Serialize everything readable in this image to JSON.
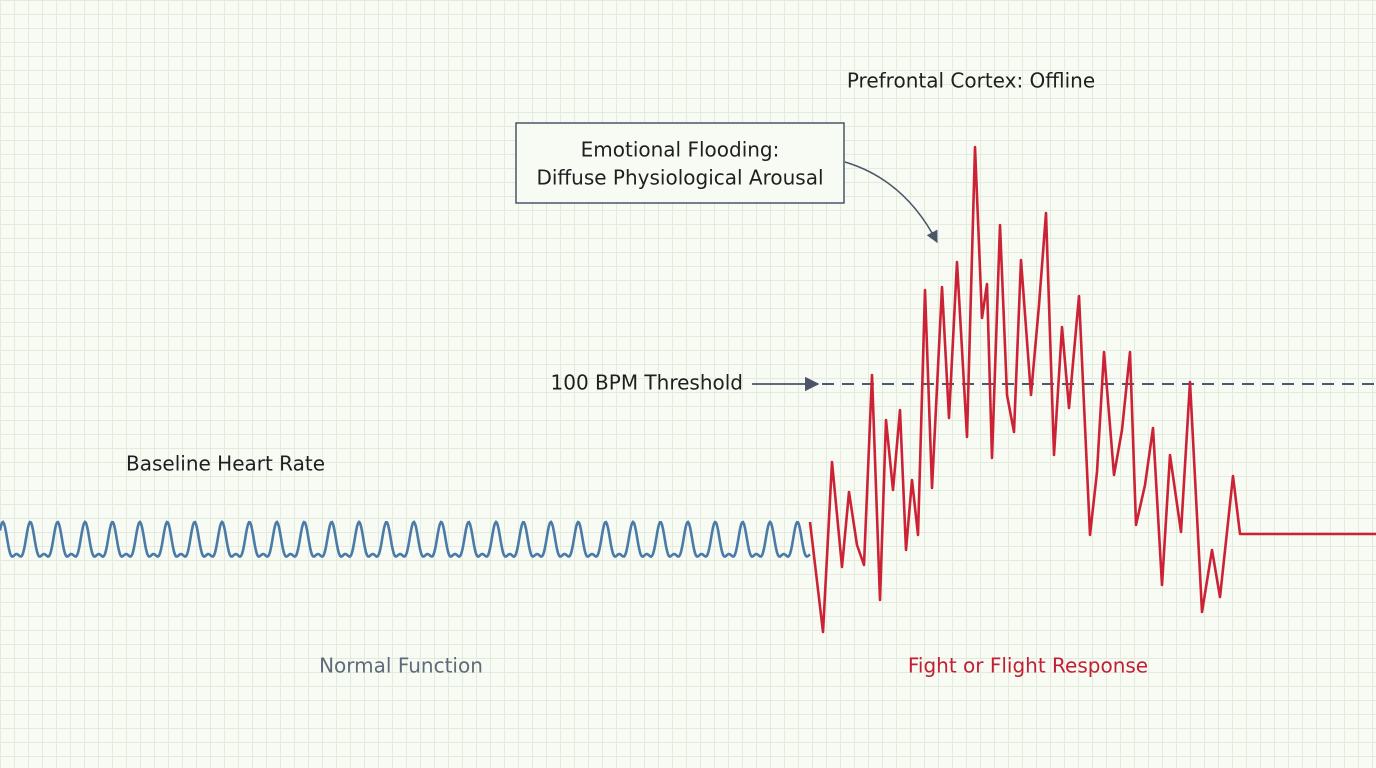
{
  "annotations": {
    "top_label": "Prefrontal Cortex: Offline",
    "callout": {
      "line1": "Emotional Flooding:",
      "line2": "Diffuse Physiological Arousal"
    },
    "threshold": "100 BPM Threshold",
    "baseline": "Baseline Heart Rate"
  },
  "sections": {
    "left": "Normal Function",
    "right": "Fight or Flight Response"
  }
}
